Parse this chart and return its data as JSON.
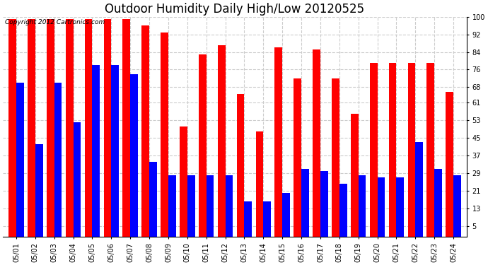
{
  "title": "Outdoor Humidity Daily High/Low 20120525",
  "copyright": "Copyright 2012 Cartronics.com",
  "dates": [
    "05/01",
    "05/02",
    "05/03",
    "05/04",
    "05/05",
    "05/06",
    "05/07",
    "05/08",
    "05/09",
    "05/10",
    "05/11",
    "05/12",
    "05/13",
    "05/14",
    "05/15",
    "05/16",
    "05/17",
    "05/18",
    "05/19",
    "05/20",
    "05/21",
    "05/22",
    "05/23",
    "05/24"
  ],
  "highs": [
    99,
    99,
    99,
    99,
    99,
    99,
    99,
    96,
    93,
    50,
    83,
    87,
    65,
    48,
    86,
    72,
    85,
    72,
    56,
    79,
    79,
    79,
    79,
    66
  ],
  "lows": [
    70,
    42,
    70,
    52,
    78,
    78,
    74,
    34,
    28,
    28,
    28,
    28,
    16,
    16,
    20,
    31,
    30,
    24,
    28,
    27,
    27,
    43,
    31,
    28
  ],
  "high_color": "#ff0000",
  "low_color": "#0000ff",
  "bg_color": "#ffffff",
  "yticks": [
    5,
    13,
    21,
    29,
    37,
    45,
    53,
    61,
    68,
    76,
    84,
    92,
    100
  ],
  "ymin": 0,
  "ymax": 100,
  "ylim_display_min": 5,
  "bar_width": 0.4,
  "title_fontsize": 12,
  "tick_fontsize": 7,
  "copyright_fontsize": 6.5
}
